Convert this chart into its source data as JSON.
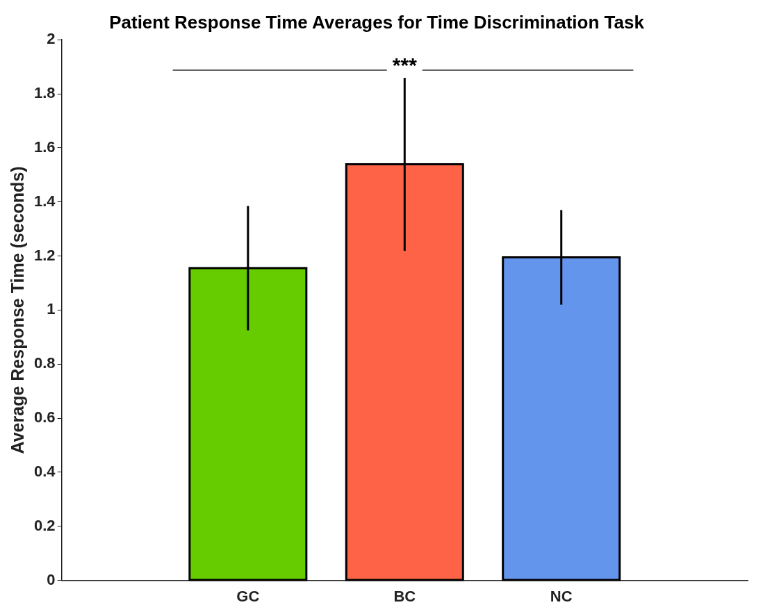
{
  "chart_data": {
    "type": "bar",
    "title": "Patient Response Time Averages for Time Discrimination Task",
    "ylabel": "Average Response Time (seconds)",
    "categories": [
      "GC",
      "BC",
      "NC"
    ],
    "values": [
      1.155,
      1.539,
      1.195
    ],
    "errors": [
      0.23,
      0.32,
      0.175
    ],
    "colors": [
      "#66cc00",
      "#ff6347",
      "#6495ed"
    ],
    "ylim": [
      0,
      2
    ],
    "yticks": [
      0,
      0.2,
      0.4,
      0.6,
      0.8,
      1,
      1.2,
      1.4,
      1.6,
      1.8,
      2
    ],
    "annotations": [
      "***"
    ]
  }
}
